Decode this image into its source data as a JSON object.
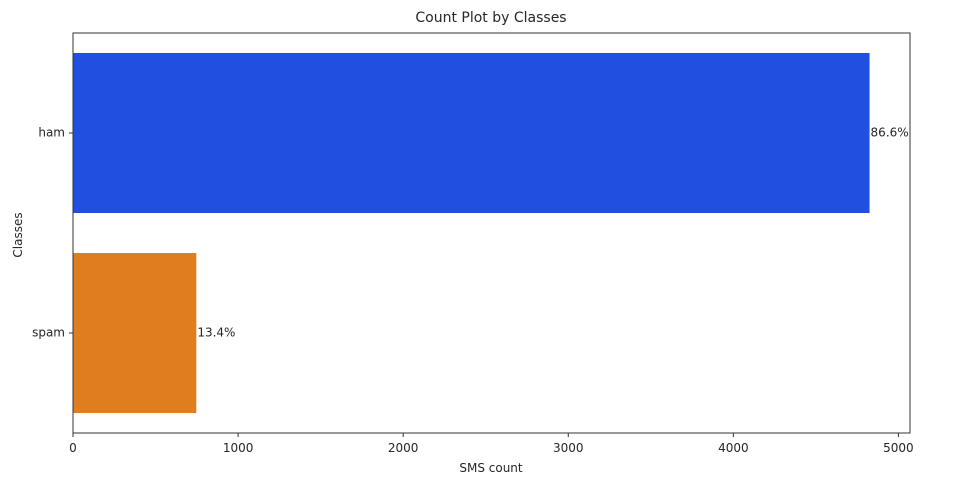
{
  "chart_data": {
    "type": "bar",
    "orientation": "horizontal",
    "title": "Count Plot by Classes",
    "xlabel": "SMS count",
    "ylabel": "Classes",
    "categories": [
      "ham",
      "spam"
    ],
    "values": [
      4825,
      747
    ],
    "data_labels": [
      "86.6%",
      "13.4%"
    ],
    "colors": [
      "#2150e0",
      "#e07e1f"
    ],
    "xlim": [
      0,
      5070
    ],
    "xticks": [
      0,
      1000,
      2000,
      3000,
      4000,
      5000
    ],
    "xtick_labels": [
      "0",
      "1000",
      "2000",
      "3000",
      "4000",
      "5000"
    ],
    "grid": false,
    "legend": "none"
  }
}
